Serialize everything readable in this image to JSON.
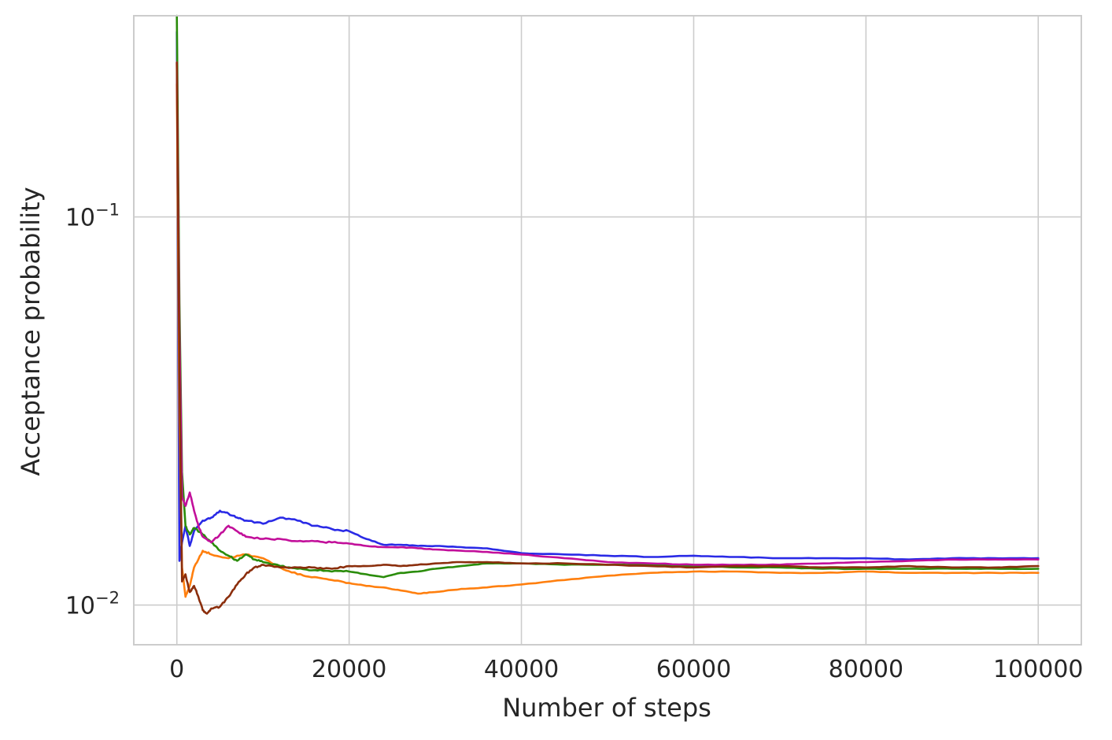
{
  "chart_data": {
    "type": "line",
    "xlabel": "Number of steps",
    "ylabel": "Acceptance probability",
    "x_scale": "linear",
    "y_scale": "log",
    "xlim": [
      -5000,
      105000
    ],
    "ylim": [
      0.0079,
      0.33
    ],
    "grid": true,
    "legend": "none",
    "x_ticks": [
      {
        "value": 0,
        "label": "0"
      },
      {
        "value": 20000,
        "label": "20000"
      },
      {
        "value": 40000,
        "label": "40000"
      },
      {
        "value": 60000,
        "label": "60000"
      },
      {
        "value": 80000,
        "label": "80000"
      },
      {
        "value": 100000,
        "label": "100000"
      }
    ],
    "y_ticks": [
      {
        "value": 0.1,
        "base": "10",
        "exponent": "−1"
      },
      {
        "value": 0.01,
        "base": "10",
        "exponent": "−2"
      }
    ],
    "series": [
      {
        "color": "#2a2ae6",
        "x": [
          0,
          300,
          600,
          1000,
          1500,
          2000,
          3000,
          4000,
          5000,
          6000,
          7000,
          8000,
          10000,
          12000,
          14000,
          16000,
          18000,
          20000,
          22000,
          24000,
          26000,
          28000,
          30000,
          33000,
          36000,
          40000,
          45000,
          50000,
          55000,
          60000,
          65000,
          70000,
          75000,
          80000,
          85000,
          90000,
          95000,
          100000
        ],
        "y": [
          0.3,
          0.013,
          0.0145,
          0.016,
          0.0142,
          0.0155,
          0.0165,
          0.0168,
          0.0175,
          0.0172,
          0.0168,
          0.0165,
          0.0162,
          0.0168,
          0.0165,
          0.016,
          0.0157,
          0.0155,
          0.0148,
          0.0143,
          0.0143,
          0.0142,
          0.0142,
          0.0141,
          0.014,
          0.0136,
          0.0135,
          0.0134,
          0.0133,
          0.0134,
          0.0133,
          0.0132,
          0.0132,
          0.0132,
          0.0131,
          0.0132,
          0.0132,
          0.0132
        ]
      },
      {
        "color": "#ff7f0e",
        "x": [
          0,
          300,
          600,
          1000,
          1500,
          2000,
          3000,
          4000,
          6000,
          8000,
          10000,
          12000,
          14000,
          16000,
          18000,
          20000,
          22000,
          24000,
          26000,
          28000,
          30000,
          33000,
          36000,
          40000,
          45000,
          50000,
          55000,
          60000,
          65000,
          70000,
          75000,
          80000,
          85000,
          90000,
          95000,
          100000
        ],
        "y": [
          0.22,
          0.03,
          0.0125,
          0.0105,
          0.0112,
          0.0125,
          0.0138,
          0.0135,
          0.0132,
          0.0135,
          0.0132,
          0.0125,
          0.012,
          0.0118,
          0.0116,
          0.0114,
          0.0112,
          0.0111,
          0.0109,
          0.0107,
          0.0108,
          0.011,
          0.0111,
          0.0113,
          0.0116,
          0.0119,
          0.0121,
          0.0122,
          0.0122,
          0.0121,
          0.0121,
          0.0122,
          0.0121,
          0.0121,
          0.0121,
          0.0121
        ]
      },
      {
        "color": "#2a8c0a",
        "x": [
          0,
          300,
          600,
          1000,
          1500,
          2000,
          3000,
          4000,
          5000,
          6000,
          7000,
          8000,
          9000,
          10000,
          12000,
          14000,
          16000,
          18000,
          20000,
          22000,
          24000,
          26000,
          28000,
          30000,
          33000,
          36000,
          40000,
          45000,
          50000,
          55000,
          60000,
          65000,
          70000,
          75000,
          80000,
          85000,
          90000,
          95000,
          100000
        ],
        "y": [
          0.33,
          0.06,
          0.022,
          0.016,
          0.0152,
          0.0158,
          0.0152,
          0.0145,
          0.0138,
          0.0134,
          0.013,
          0.0135,
          0.0131,
          0.0129,
          0.0126,
          0.0124,
          0.0123,
          0.0122,
          0.0122,
          0.012,
          0.0118,
          0.0121,
          0.0122,
          0.0124,
          0.0126,
          0.0128,
          0.0128,
          0.0127,
          0.0127,
          0.0127,
          0.0126,
          0.0125,
          0.0125,
          0.0124,
          0.0124,
          0.0124,
          0.0124,
          0.0124,
          0.0124
        ]
      },
      {
        "color": "#c20f9a",
        "x": [
          0,
          300,
          600,
          1000,
          1500,
          2000,
          2500,
          3000,
          4000,
          5000,
          6000,
          7000,
          8000,
          10000,
          12000,
          14000,
          16000,
          18000,
          20000,
          22000,
          24000,
          26000,
          28000,
          30000,
          33000,
          36000,
          40000,
          45000,
          50000,
          55000,
          60000,
          65000,
          70000,
          75000,
          80000,
          85000,
          90000,
          95000,
          100000
        ],
        "y": [
          0.25,
          0.05,
          0.019,
          0.018,
          0.0195,
          0.0175,
          0.016,
          0.015,
          0.0145,
          0.0152,
          0.016,
          0.0155,
          0.015,
          0.0148,
          0.0148,
          0.0146,
          0.0146,
          0.0145,
          0.0144,
          0.0142,
          0.0141,
          0.0141,
          0.014,
          0.0139,
          0.0138,
          0.0137,
          0.0135,
          0.0132,
          0.0129,
          0.0128,
          0.0127,
          0.0127,
          0.0127,
          0.0128,
          0.0129,
          0.013,
          0.0131,
          0.0131,
          0.0131
        ]
      },
      {
        "color": "#8b2e0c",
        "x": [
          0,
          300,
          600,
          1000,
          1500,
          2000,
          2500,
          3000,
          3500,
          4000,
          5000,
          6000,
          7000,
          8000,
          9000,
          10000,
          12000,
          14000,
          16000,
          18000,
          20000,
          22000,
          24000,
          26000,
          28000,
          30000,
          33000,
          36000,
          40000,
          45000,
          50000,
          55000,
          60000,
          65000,
          70000,
          75000,
          80000,
          85000,
          90000,
          95000,
          100000
        ],
        "y": [
          0.25,
          0.04,
          0.0115,
          0.012,
          0.0108,
          0.0112,
          0.0105,
          0.0097,
          0.0095,
          0.0098,
          0.0099,
          0.0105,
          0.0113,
          0.012,
          0.0125,
          0.0127,
          0.0125,
          0.0125,
          0.0125,
          0.0124,
          0.0126,
          0.0126,
          0.0127,
          0.0126,
          0.0127,
          0.0128,
          0.0129,
          0.0129,
          0.0128,
          0.0128,
          0.0127,
          0.0126,
          0.0125,
          0.0126,
          0.0126,
          0.0125,
          0.0125,
          0.0126,
          0.0125,
          0.0125,
          0.0126
        ]
      }
    ]
  }
}
